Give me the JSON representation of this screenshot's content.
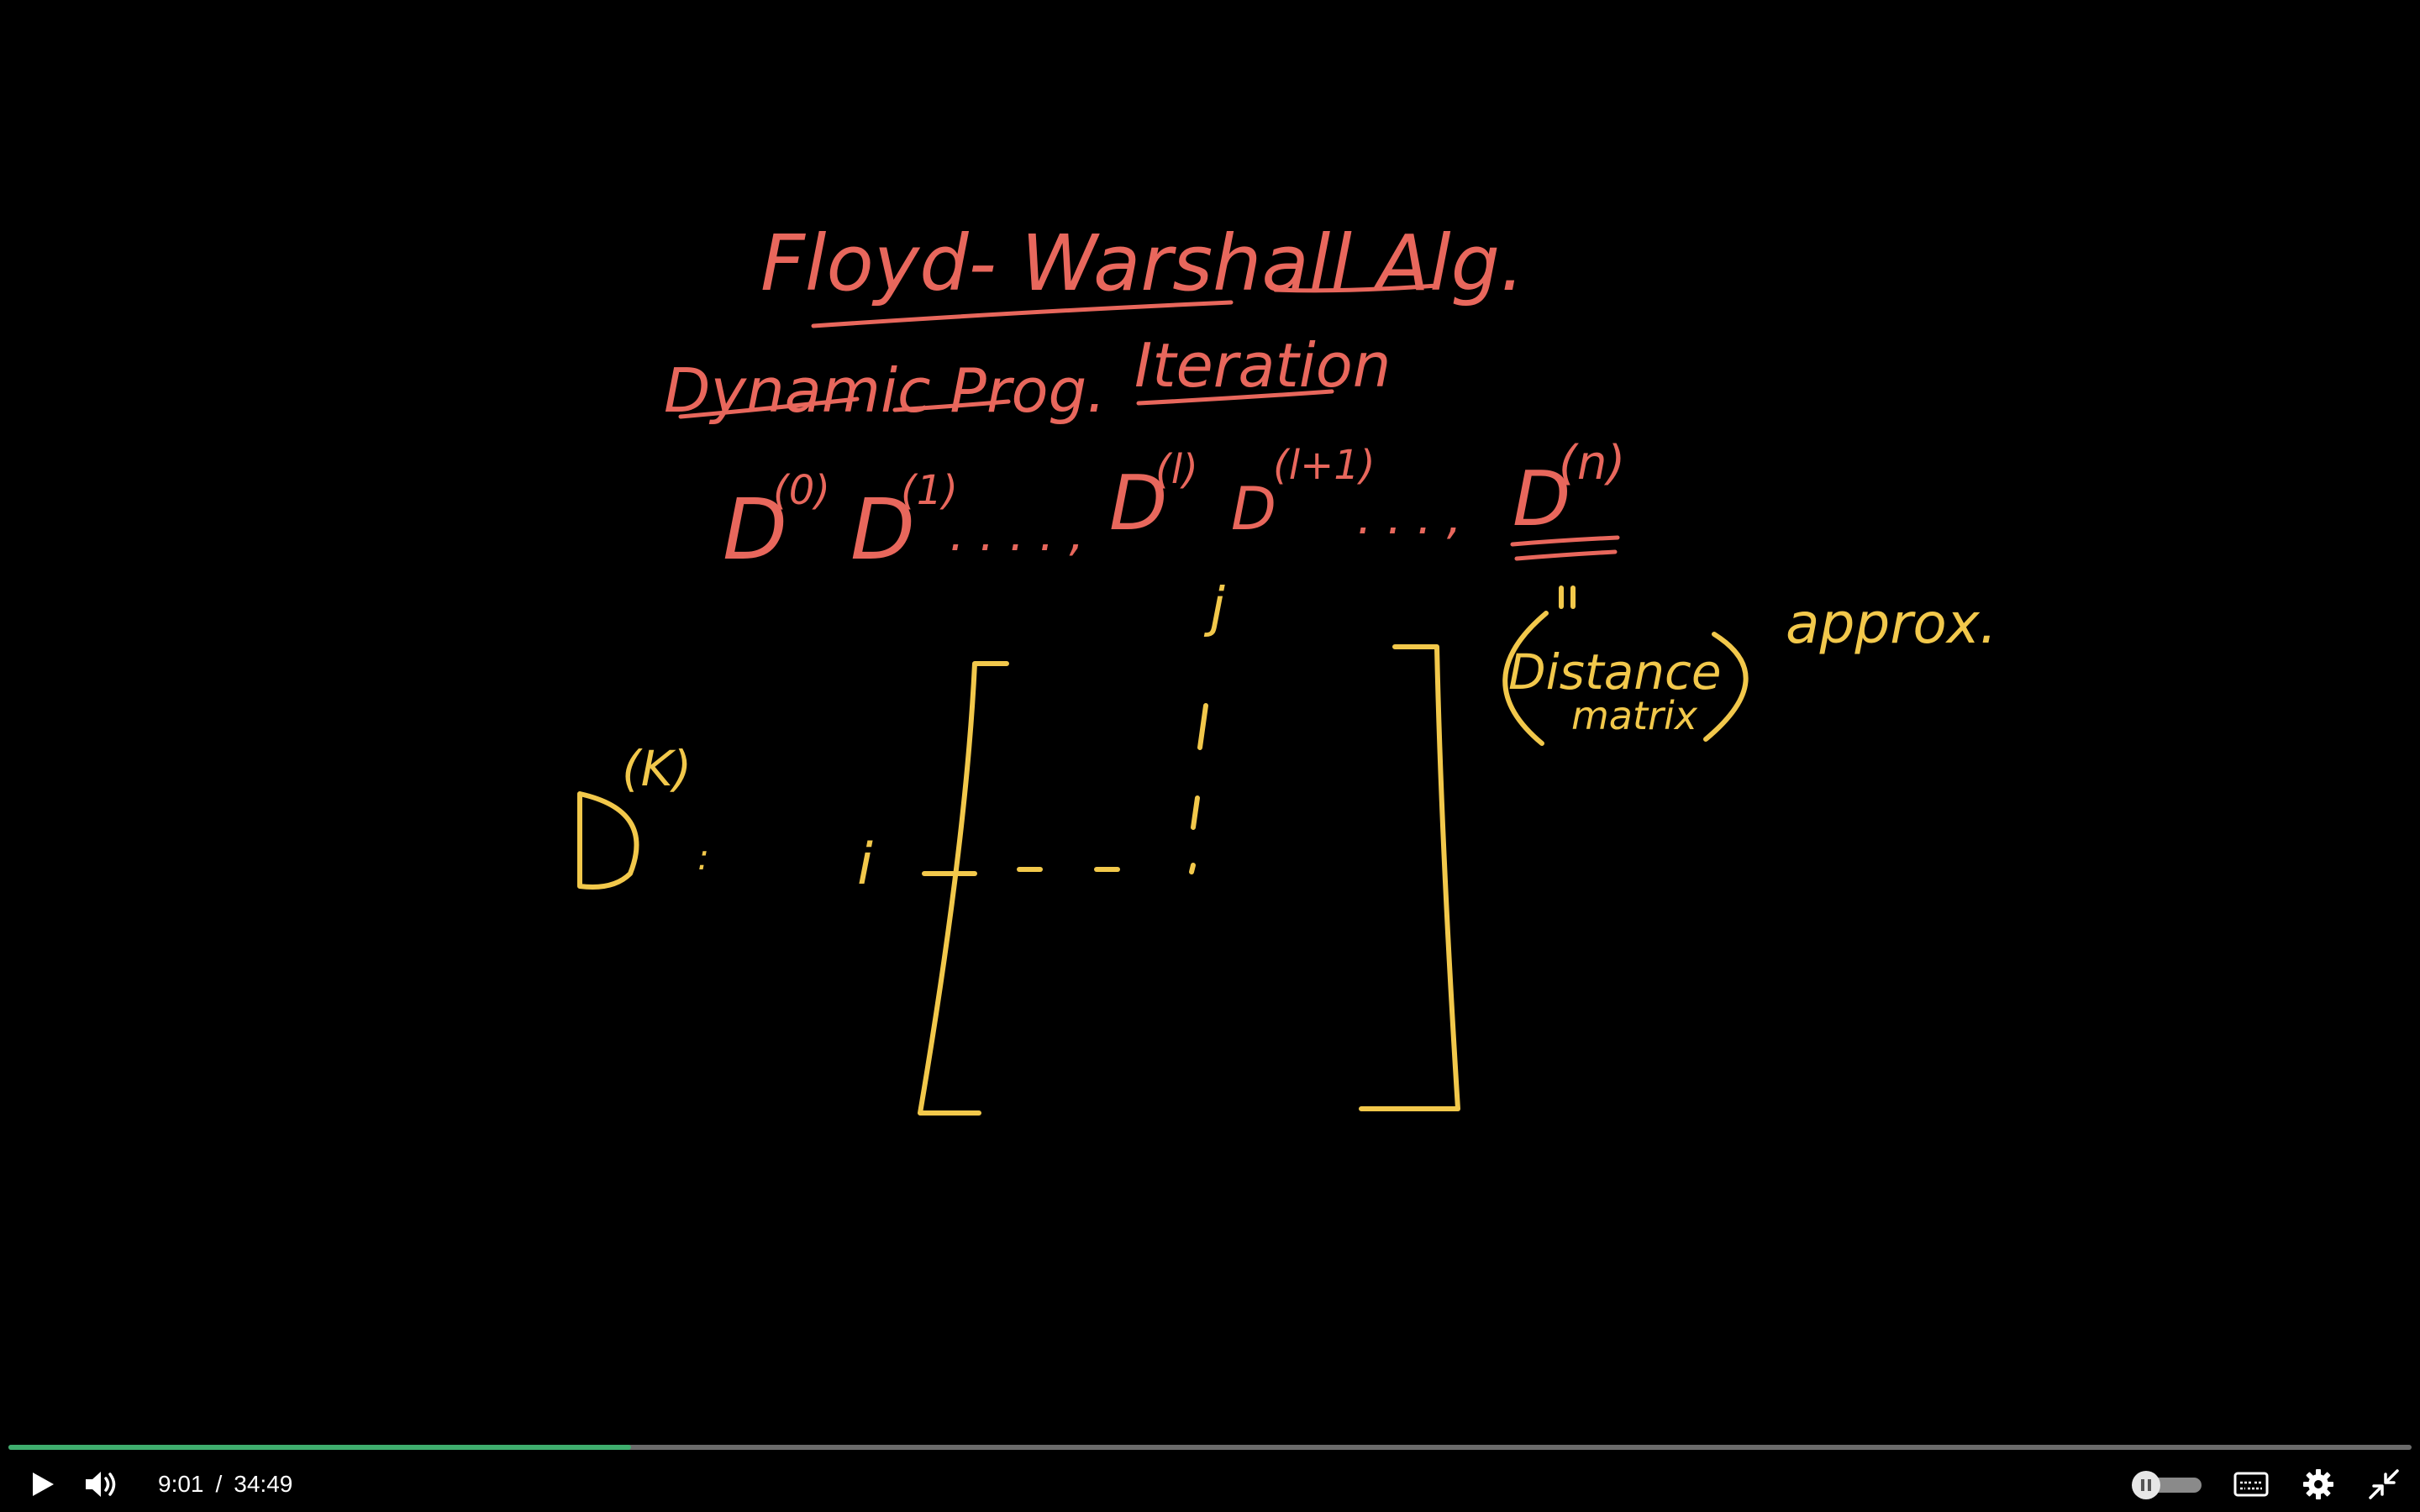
{
  "board": {
    "title": "Floyd- Warshall  Alg.",
    "subtitle_dp": "Dynamic  Prog.",
    "subtitle_iter": "Iteration",
    "sequence": {
      "d0": "D",
      "d0_sup": "(0)",
      "d1": "D",
      "d1_sup": "(1)",
      "dots1": ". . . . ,",
      "dl": "D",
      "dl_sup": "(l)",
      "dl1": "D",
      "dl1_sup": "(l+1)",
      "dots2": ". . . ,",
      "dn": "D",
      "dn_sup": "(n)"
    },
    "distance_matrix": "Distance",
    "distance_matrix_2": "matrix",
    "approx": "approx.",
    "dk": "D",
    "dk_sup": "(K)",
    "dk_colon": ":",
    "row_label": "i",
    "col_label": "j",
    "colors": {
      "red": "#e8675c",
      "yellow": "#f2c84b"
    }
  },
  "controls": {
    "play_icon": "play-icon",
    "volume_icon": "volume-icon",
    "current_time": "9:01",
    "separator": "/",
    "duration": "34:49",
    "progress_fraction": 0.259,
    "autoplay_icon": "autoplay-toggle-icon",
    "captions_icon": "captions-icon",
    "settings_icon": "gear-icon",
    "exit_fullscreen_icon": "exit-fullscreen-icon",
    "colors": {
      "progress": "#3fae6e",
      "track": "#6b6b6b"
    }
  }
}
